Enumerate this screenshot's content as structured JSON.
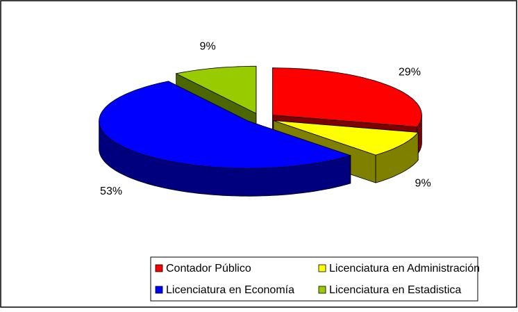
{
  "chart_data": {
    "type": "pie3d",
    "categories": [
      "Contador Público",
      "Licenciatura en Administración",
      "Licenciatura en Economía",
      "Licenciatura en Estadistica"
    ],
    "values": [
      29,
      9,
      53,
      9
    ],
    "value_labels": [
      "29%",
      "9%",
      "53%",
      "9%"
    ],
    "colors": [
      "#ff0000",
      "#ffff00",
      "#0000ff",
      "#99cc00"
    ],
    "legend": "bottom"
  }
}
